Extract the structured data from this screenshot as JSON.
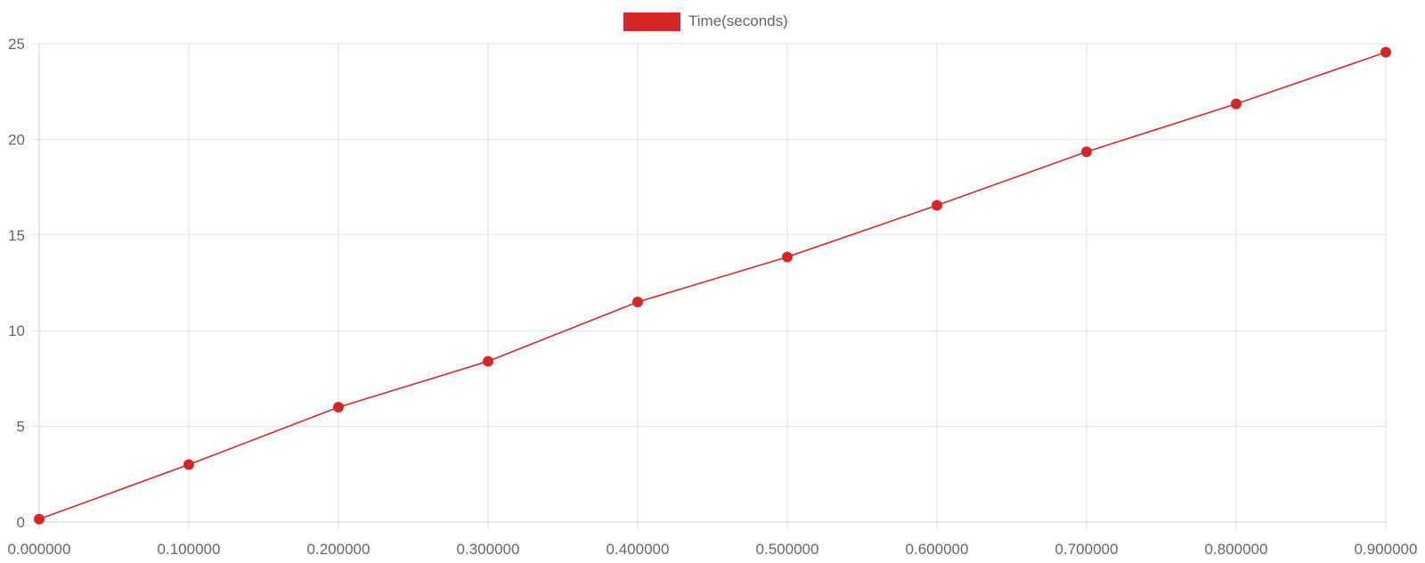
{
  "chart_data": {
    "type": "line",
    "x": [
      "0.000000",
      "0.100000",
      "0.200000",
      "0.300000",
      "0.400000",
      "0.500000",
      "0.600000",
      "0.700000",
      "0.800000",
      "0.900000"
    ],
    "series": [
      {
        "name": "Time(seconds)",
        "color": "#d62728",
        "values": [
          0.15,
          3.0,
          6.0,
          8.4,
          11.5,
          13.85,
          16.55,
          19.35,
          21.85,
          24.55
        ]
      }
    ],
    "ylim": [
      0,
      25
    ],
    "yticks": [
      0,
      5,
      10,
      15,
      20,
      25
    ],
    "grid": true,
    "legend_position": "top-center",
    "title": "",
    "xlabel": "",
    "ylabel": ""
  }
}
